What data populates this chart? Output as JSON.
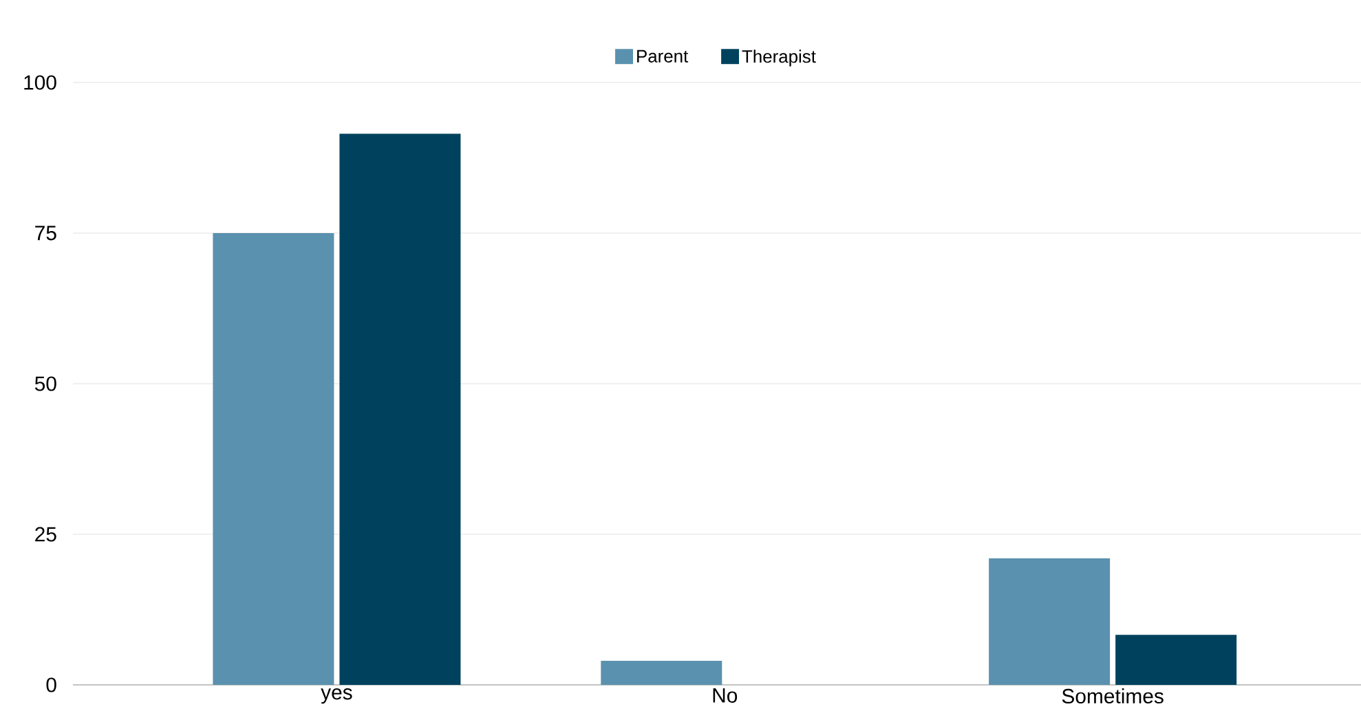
{
  "chart_data": {
    "type": "bar",
    "categories": [
      "yes",
      "No",
      "Sometimes"
    ],
    "series": [
      {
        "name": "Parent",
        "color": "#5a91ae",
        "values": [
          75,
          4,
          21
        ]
      },
      {
        "name": "Therapist",
        "color": "#00425e",
        "values": [
          91.5,
          0,
          8.3
        ]
      }
    ],
    "ylim": [
      0,
      100
    ],
    "yticks": [
      0,
      25,
      50,
      75,
      100
    ],
    "grid": "y",
    "legend": "top"
  }
}
